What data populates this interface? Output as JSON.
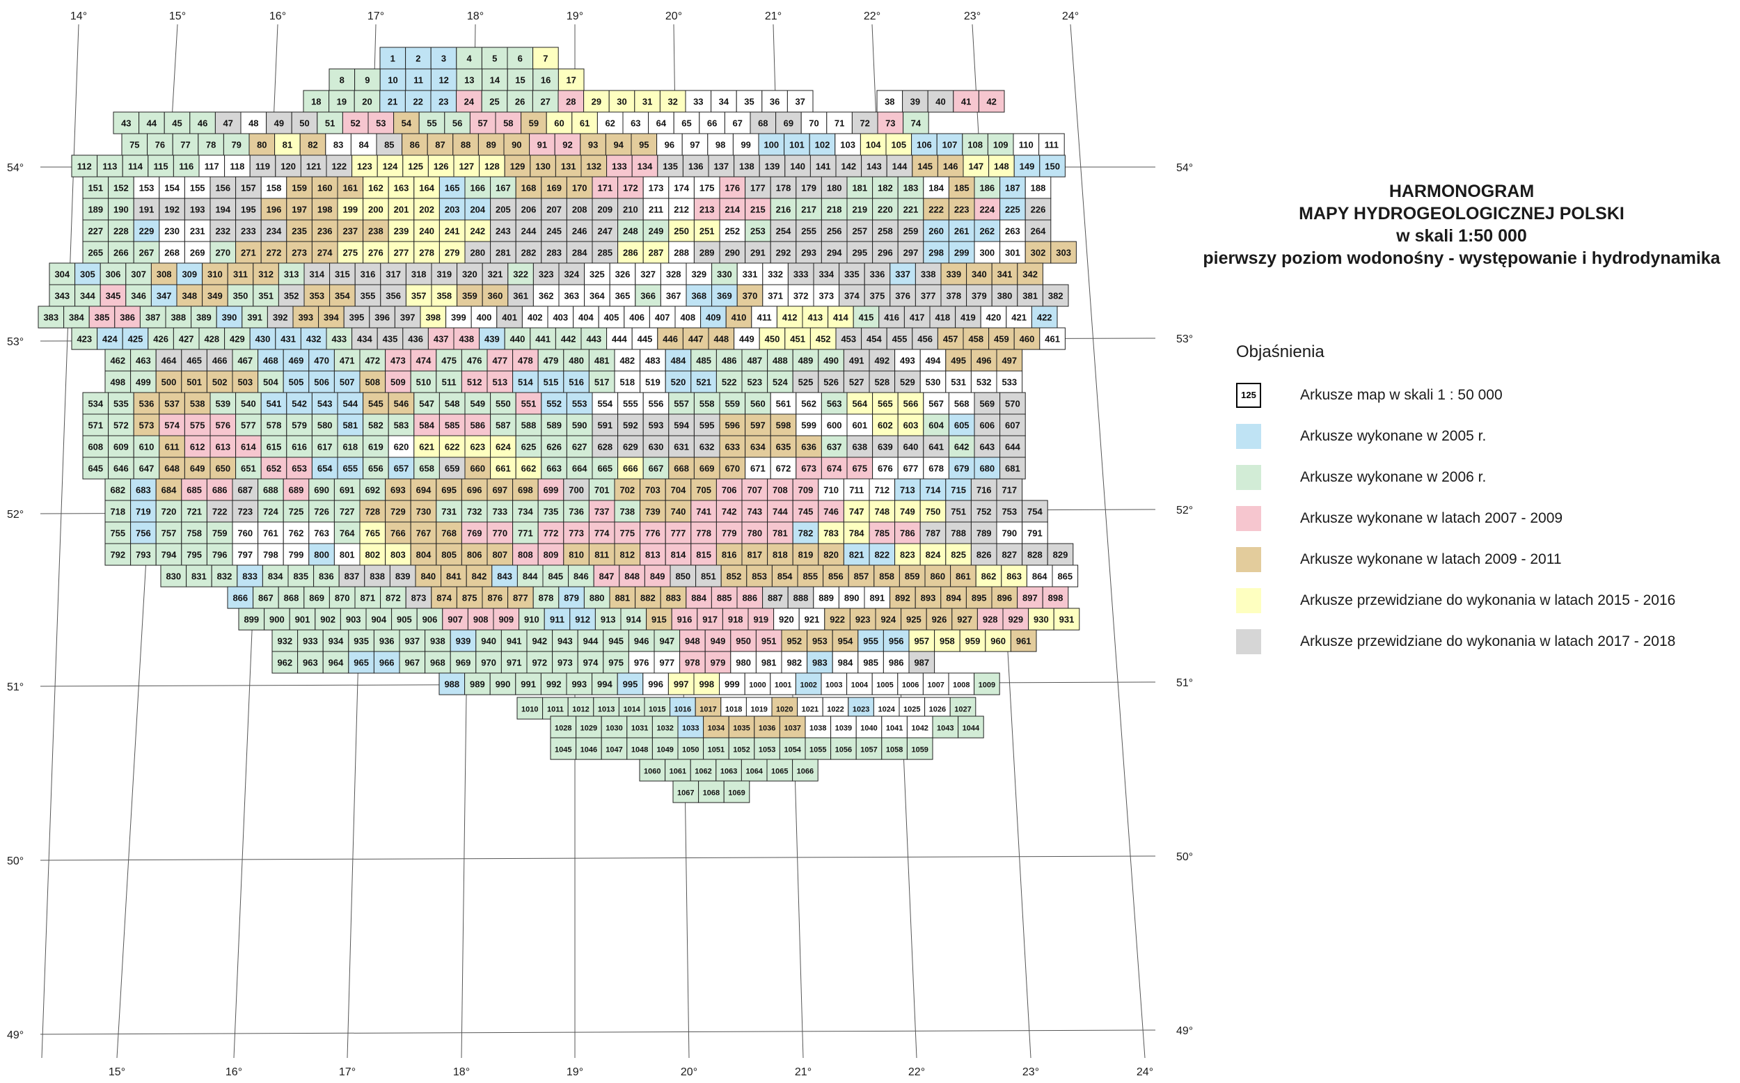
{
  "title_lines": [
    "HARMONOGRAM",
    "MAPY HYDROGEOLOGICZNEJ POLSKI",
    "w skali 1:50 000",
    "pierwszy poziom wodonośny - występowanie i hydrodynamika"
  ],
  "legend": {
    "heading": "Objaśnienia",
    "items": [
      {
        "swatch_text": "125",
        "label": "Arkusze map w skali 1 : 50 000",
        "color": "#ffffff",
        "border": "#000000"
      },
      {
        "swatch_text": "",
        "label": "Arkusze wykonane w 2005 r.",
        "color": "#bfe3f4",
        "border": "none"
      },
      {
        "swatch_text": "",
        "label": "Arkusze wykonane w 2006 r.",
        "color": "#d2ecd6",
        "border": "none"
      },
      {
        "swatch_text": "",
        "label": "Arkusze wykonane w latach 2007 - 2009",
        "color": "#f6c6cf",
        "border": "none"
      },
      {
        "swatch_text": "",
        "label": "Arkusze wykonane w latach 2009 - 2011",
        "color": "#e3cc9c",
        "border": "none"
      },
      {
        "swatch_text": "",
        "label": "Arkusze przewidziane do wykonania w latach 2015 - 2016",
        "color": "#feffc0",
        "border": "none"
      },
      {
        "swatch_text": "",
        "label": "Arkusze przewidziane do wykonania w latach 2017 - 2018",
        "color": "#d6d6d6",
        "border": "none"
      }
    ]
  },
  "category_colors": {
    "W": "#ffffff",
    "B": "#bfe3f4",
    "G": "#d2ecd6",
    "P": "#f6c6cf",
    "T": "#e3cc9c",
    "Y": "#feffc0",
    "S": "#d6d6d6"
  },
  "map": {
    "sheet_count": 1069,
    "rows": [
      {
        "first": 1,
        "last": 7,
        "cats": "BBBGGGY"
      },
      {
        "first": 8,
        "last": 17,
        "cats": "GGBBBGGGGY"
      },
      {
        "first": 18,
        "last": 37,
        "cats": "GGGBBBPGGGPYYYYWWWW"
      },
      {
        "first": 38,
        "last": 42,
        "cats": "WSSPP"
      },
      {
        "first": 43,
        "last": 74,
        "cats": "GGGGSWSSGPPTGGPPTYYWWWWWWSSWWSPG"
      },
      {
        "first": 75,
        "last": 111,
        "cats": "GGGGGTYTWWSTTTTTPPTTTWWWWBBBWYYBBGG"
      },
      {
        "first": 112,
        "last": 150,
        "cats": "GGGGGWWSSSSYYYYYYTTTTPPSSSSSSSSSSTTYYBBGG"
      },
      {
        "first": 151,
        "last": 188,
        "cats": "GGWWWSSWTTTYYYBGGTTTPPWWWPSSSSGGGWTGBWTT"
      },
      {
        "first": 189,
        "last": 226,
        "cats": "GGSSSSSTTTYYYYBBSSSSSSWWPPPGGGGGGTTPBSWT"
      },
      {
        "first": 227,
        "last": 264,
        "cats": "GGBWWSSSTTTTYYYYSSSSSGGYYWGSSSSSSBBBWSTT"
      },
      {
        "first": 265,
        "last": 303,
        "cats": "GGGWWGTTTTYYYYYSSSSSSYYWSSSSSSSSSBBWWTTT"
      },
      {
        "first": 304,
        "last": 342,
        "cats": "GBGGTBTTTGSSSSSSSSGSSWWWWWGWWSSSSBSTTTTT"
      },
      {
        "first": 343,
        "last": 382,
        "cats": "GGPGBTTGGSTTSSYYTTSWWWWGWBBTWWWSSSSSSSSST"
      },
      {
        "first": 383,
        "last": 422,
        "cats": "GGPPGGGBGSTTSSSYWWSWWWWWWWBTWYYYGSSSSWWB"
      },
      {
        "first": 423,
        "last": 461,
        "cats": "GBBGGGGBBBGSSSPPBGGGGWWTTTWYYYSSSSTTTT"
      },
      {
        "first": 462,
        "last": 497,
        "cats": "GGSSSGBBBGGPPGGPPGGGWWBGGGGGGSSWWTTT"
      },
      {
        "first": 498,
        "last": 533,
        "cats": "GGTTTTGBBBTPGGPPBBBGWWBBGGGSSSSSW"
      },
      {
        "first": 534,
        "last": 570,
        "cats": "GGTTTGGBBBBTTGGGGPBBWWWGGGGWWGYYYWWSSS"
      },
      {
        "first": 571,
        "last": 607,
        "cats": "GGTPPPGGGGBGGPPPGGGGSSSSSTTTWWWYYGBSS"
      },
      {
        "first": 608,
        "last": 644,
        "cats": "GGGTPPPGGGGGWYYYYGGGSSSSSTTTTGSSSSGSS"
      },
      {
        "first": 645,
        "last": 681,
        "cats": "GGGTTTGPPBBGBGSTYYGGGYGTTTWWPPPWWWBBSS"
      },
      {
        "first": 682,
        "last": 717,
        "cats": "GBTPPSGPGGGTTTTTTPSGTTTTPPPPWWWBBBSS"
      },
      {
        "first": 718,
        "last": 754,
        "cats": "GBGGSSGGGGTTTGGGGGGPGTTPPPPPPYYYYSSSSW"
      },
      {
        "first": 755,
        "last": 791,
        "cats": "GBGGGWWWWGYTTTPPGPPPPPPPPPPBYYPPSSSW"
      },
      {
        "first": 792,
        "last": 829,
        "cats": "GGGGGWWWBWYYTTTTPPTTTPPPTTTTTBBYYYSSSSWW"
      },
      {
        "first": 830,
        "last": 865,
        "cats": "GGGBGGGSSSTTTBGGGPPPSSTTTTTTTTTTYYWWW"
      },
      {
        "first": 866,
        "last": 898,
        "cats": "BGGGGGGSTTTTGBGTTTPPPSSWWWTTTTTPPYYWW"
      },
      {
        "first": 899,
        "last": 931,
        "cats": "GGGGGGGGPPPGBBGGTPPPPWWTTTTTTPPYYGG"
      },
      {
        "first": 932,
        "last": 961,
        "cats": "GGGGGGGBGGGGGGGGPPPPTTTBBYYYYTTGG"
      },
      {
        "first": 962,
        "last": 987,
        "cats": "GGGBBGGGGGGGGGWWPPWWWBWWWSSGG"
      },
      {
        "first": 988,
        "last": 1009,
        "cats": "BGGGGGGBWYYWWWBWWWWWWGG"
      },
      {
        "first": 1010,
        "last": 1027,
        "cats": "GGGGGGBTWWTWWBWWWGG"
      },
      {
        "first": 1028,
        "last": 1044,
        "cats": "GGGGGBTTTTWWWWWGG"
      },
      {
        "first": 1045,
        "last": 1059,
        "cats": "GGGGGGGGGGGGGGG"
      },
      {
        "first": 1060,
        "last": 1066,
        "cats": "GGGGGGG"
      },
      {
        "first": 1067,
        "last": 1069,
        "cats": "GGG"
      }
    ]
  },
  "meridian_labels": {
    "top": [
      "14°",
      "15°",
      "16°",
      "17°",
      "18°",
      "19°",
      "20°",
      "21°",
      "22°",
      "23°",
      "24°"
    ],
    "bottom": [
      "15°",
      "16°",
      "17°",
      "18°",
      "19°",
      "20°",
      "21°",
      "22°",
      "23°",
      "24°"
    ]
  },
  "parallel_labels": {
    "left": [
      "54°",
      "53°",
      "52°",
      "51°",
      "50°",
      "49°"
    ],
    "right": [
      "54°",
      "53°",
      "52°",
      "51°",
      "50°",
      "49°"
    ]
  }
}
